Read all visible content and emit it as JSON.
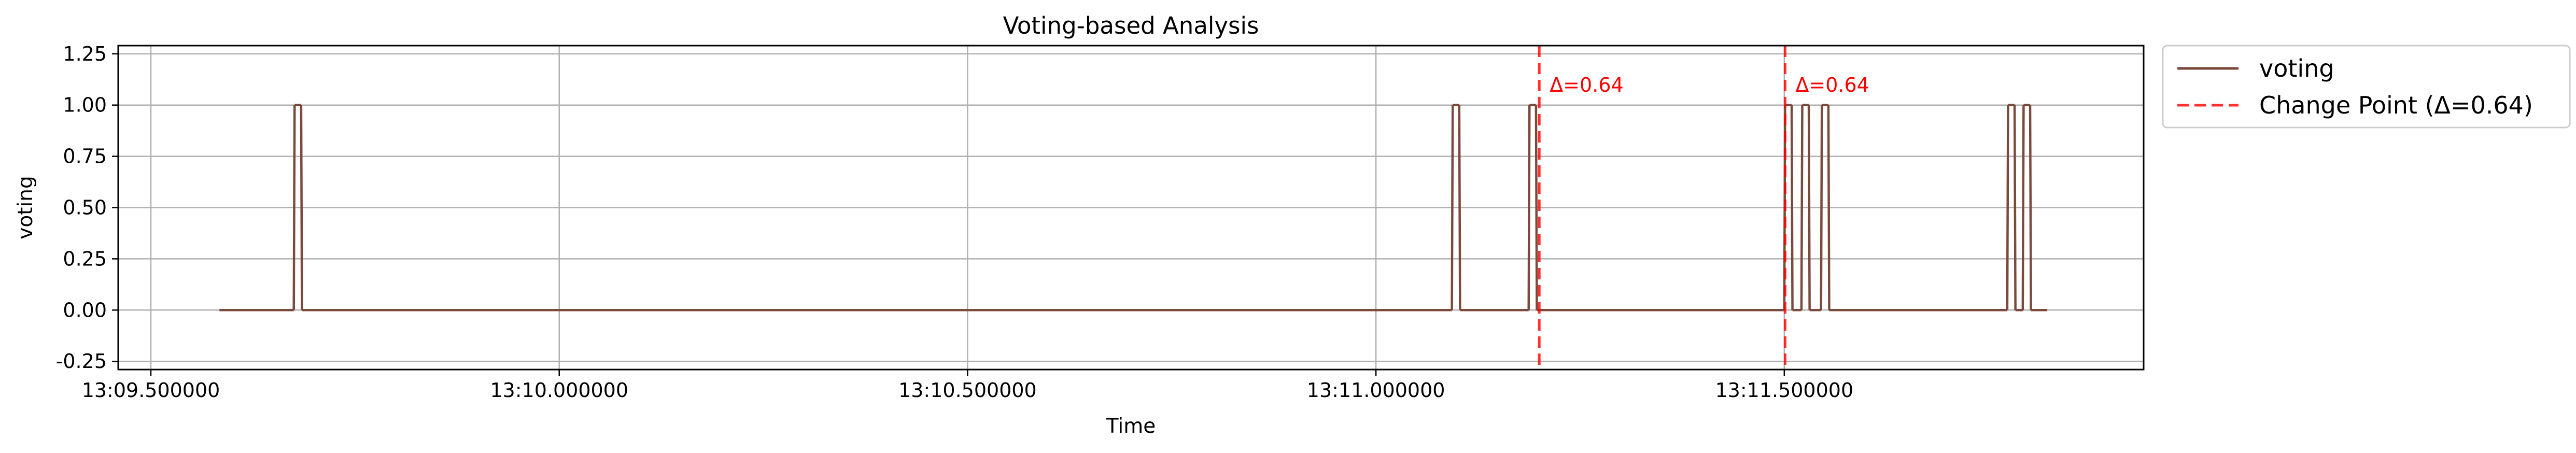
{
  "chart_data": {
    "type": "line",
    "title": "Voting-based Analysis",
    "xlabel": "Time",
    "ylabel": "voting",
    "xlim": [
      "13:09.46",
      "13:11.94"
    ],
    "ylim": [
      -0.29,
      1.29
    ],
    "x_unit": "seconds",
    "x_ticks": [
      {
        "value": "13:09.5",
        "label": "13:09.500000"
      },
      {
        "value": "13:10.0",
        "label": "13:10.000000"
      },
      {
        "value": "13:10.5",
        "label": "13:10.500000"
      },
      {
        "value": "13:11.0",
        "label": "13:11.000000"
      },
      {
        "value": "13:11.5",
        "label": "13:11.500000"
      }
    ],
    "y_ticks": [
      {
        "value": -0.25,
        "label": "-0.25"
      },
      {
        "value": 0.0,
        "label": "0.00"
      },
      {
        "value": 0.25,
        "label": "0.25"
      },
      {
        "value": 0.5,
        "label": "0.50"
      },
      {
        "value": 0.75,
        "label": "0.75"
      },
      {
        "value": 1.0,
        "label": "1.00"
      },
      {
        "value": 1.25,
        "label": "1.25"
      }
    ],
    "grid": true,
    "legend_position": "outside-right-top",
    "series": [
      {
        "name": "voting",
        "color": "#7b4a3c",
        "style": "solid",
        "points": [
          {
            "x": "13:09.584",
            "y": 0
          },
          {
            "x": "13:09.675",
            "y": 0
          },
          {
            "x": "13:09.676",
            "y": 1
          },
          {
            "x": "13:09.684",
            "y": 1
          },
          {
            "x": "13:09.685",
            "y": 0
          },
          {
            "x": "13:11.093",
            "y": 0
          },
          {
            "x": "13:11.094",
            "y": 1
          },
          {
            "x": "13:11.102",
            "y": 1
          },
          {
            "x": "13:11.103",
            "y": 0
          },
          {
            "x": "13:11.187",
            "y": 0
          },
          {
            "x": "13:11.188",
            "y": 1
          },
          {
            "x": "13:11.196",
            "y": 1
          },
          {
            "x": "13:11.197",
            "y": 0
          },
          {
            "x": "13:11.500",
            "y": 0
          },
          {
            "x": "13:11.501",
            "y": 1
          },
          {
            "x": "13:11.509",
            "y": 1
          },
          {
            "x": "13:11.510",
            "y": 0
          },
          {
            "x": "13:11.521",
            "y": 0
          },
          {
            "x": "13:11.522",
            "y": 1
          },
          {
            "x": "13:11.530",
            "y": 1
          },
          {
            "x": "13:11.531",
            "y": 0
          },
          {
            "x": "13:11.545",
            "y": 0
          },
          {
            "x": "13:11.546",
            "y": 1
          },
          {
            "x": "13:11.554",
            "y": 1
          },
          {
            "x": "13:11.555",
            "y": 0
          },
          {
            "x": "13:11.773",
            "y": 0
          },
          {
            "x": "13:11.774",
            "y": 1
          },
          {
            "x": "13:11.782",
            "y": 1
          },
          {
            "x": "13:11.783",
            "y": 0
          },
          {
            "x": "13:11.792",
            "y": 0
          },
          {
            "x": "13:11.793",
            "y": 1
          },
          {
            "x": "13:11.801",
            "y": 1
          },
          {
            "x": "13:11.802",
            "y": 0
          },
          {
            "x": "13:11.822",
            "y": 0
          }
        ]
      }
    ],
    "change_points": {
      "name": "Change Point (Δ=0.64)",
      "color": "#ff0000",
      "style": "dashed",
      "items": [
        {
          "x": "13:11.200",
          "label": "Δ=0.64"
        },
        {
          "x": "13:11.501",
          "label": "Δ=0.64"
        }
      ]
    }
  }
}
